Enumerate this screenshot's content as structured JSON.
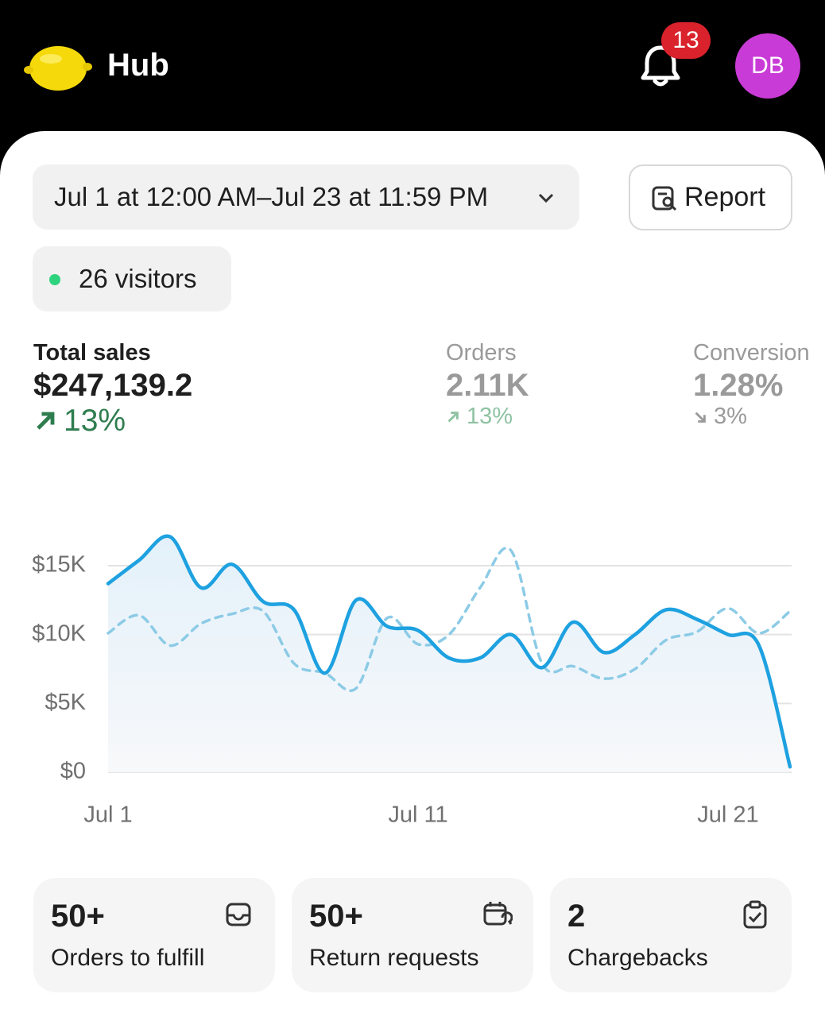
{
  "header": {
    "app_name": "Hub",
    "notification_count": "13",
    "avatar_initials": "DB"
  },
  "filters": {
    "date_range": "Jul 1 at 12:00 AM–Jul 23 at 11:59 PM",
    "report_button": "Report",
    "visitors": "26 visitors"
  },
  "metrics": [
    {
      "label": "Total sales",
      "value": "$247,139.2",
      "change": "13%",
      "direction": "up"
    },
    {
      "label": "Orders",
      "value": "2.11K",
      "change": "13%",
      "direction": "up"
    },
    {
      "label": "Conversion",
      "value": "1.28%",
      "change": "3%",
      "direction": "down"
    }
  ],
  "chart_data": {
    "type": "line",
    "categories": [
      "Jul 1",
      null,
      null,
      null,
      null,
      null,
      null,
      null,
      null,
      null,
      "Jul 11",
      null,
      null,
      null,
      null,
      null,
      null,
      null,
      null,
      null,
      "Jul 21",
      null,
      null
    ],
    "series": [
      {
        "color": "#1ea1e0",
        "style": "solid",
        "area": true,
        "values": [
          13700,
          15400,
          17100,
          13400,
          15100,
          12400,
          11800,
          7200,
          12500,
          10600,
          10300,
          8300,
          8300,
          10000,
          7600,
          10900,
          8700,
          10000,
          11800,
          11100,
          10000,
          9200,
          400
        ]
      },
      {
        "color": "#8ccbe6",
        "style": "dashed",
        "area": false,
        "values": [
          10100,
          11400,
          9200,
          10800,
          11500,
          11700,
          7900,
          7200,
          6100,
          11200,
          9300,
          10000,
          13400,
          16100,
          7900,
          7700,
          6800,
          7500,
          9600,
          10200,
          11900,
          10100,
          11700
        ]
      }
    ],
    "ylim": [
      0,
      18000
    ],
    "yticks": [
      {
        "value": 0,
        "label": "$0"
      },
      {
        "value": 5000,
        "label": "$5K"
      },
      {
        "value": 10000,
        "label": "$10K"
      },
      {
        "value": 15000,
        "label": "$15K"
      }
    ],
    "grid": true
  },
  "cards": [
    {
      "value": "50+",
      "label": "Orders to fulfill"
    },
    {
      "value": "50+",
      "label": "Return requests"
    },
    {
      "value": "2",
      "label": "Chargebacks"
    }
  ]
}
